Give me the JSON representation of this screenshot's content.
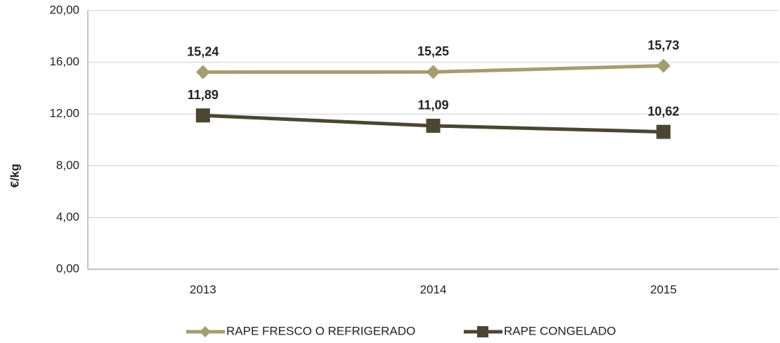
{
  "chart_data": {
    "type": "line",
    "y_label": "€/kg",
    "categories": [
      "2013",
      "2014",
      "2015"
    ],
    "series": [
      {
        "name": "RAPE FRESCO O REFRIGERADO",
        "color": "#a59d6f",
        "marker": "diamond",
        "values": [
          15.24,
          15.25,
          15.73
        ],
        "value_labels": [
          "15,24",
          "15,25",
          "15,73"
        ]
      },
      {
        "name": "RAPE CONGELADO",
        "color": "#4b4631",
        "marker": "square",
        "values": [
          11.89,
          11.09,
          10.62
        ],
        "value_labels": [
          "11,89",
          "11,09",
          "10,62"
        ]
      }
    ],
    "ylim": [
      0,
      20
    ],
    "yticks": [
      {
        "value": 0,
        "label": "0,00"
      },
      {
        "value": 4,
        "label": "4,00"
      },
      {
        "value": 8,
        "label": "8,00"
      },
      {
        "value": 12,
        "label": "12,00"
      },
      {
        "value": 16,
        "label": "16,00"
      },
      {
        "value": 20,
        "label": "20,00"
      }
    ],
    "grid": true,
    "legend": "bottom"
  }
}
